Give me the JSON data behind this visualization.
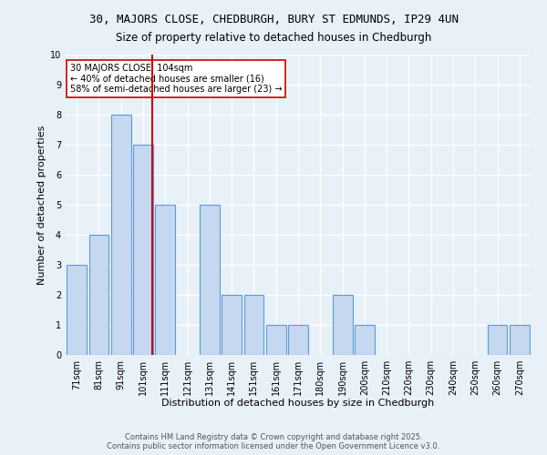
{
  "title": "30, MAJORS CLOSE, CHEDBURGH, BURY ST EDMUNDS, IP29 4UN",
  "subtitle": "Size of property relative to detached houses in Chedburgh",
  "xlabel": "Distribution of detached houses by size in Chedburgh",
  "ylabel": "Number of detached properties",
  "categories": [
    "71sqm",
    "81sqm",
    "91sqm",
    "101sqm",
    "111sqm",
    "121sqm",
    "131sqm",
    "141sqm",
    "151sqm",
    "161sqm",
    "171sqm",
    "180sqm",
    "190sqm",
    "200sqm",
    "210sqm",
    "220sqm",
    "230sqm",
    "240sqm",
    "250sqm",
    "260sqm",
    "270sqm"
  ],
  "values": [
    3,
    4,
    8,
    7,
    5,
    0,
    5,
    2,
    2,
    1,
    1,
    0,
    2,
    1,
    0,
    0,
    0,
    0,
    0,
    1,
    1
  ],
  "bar_color": "#c5d8f0",
  "bar_edge_color": "#5b9bd5",
  "background_color": "#e8f0f8",
  "grid_color": "#ffffff",
  "red_line_x": 3.4,
  "annotation_text": "30 MAJORS CLOSE: 104sqm\n← 40% of detached houses are smaller (16)\n58% of semi-detached houses are larger (23) →",
  "annotation_box_color": "#ffffff",
  "annotation_box_edge": "#cc0000",
  "red_line_color": "#cc0000",
  "ylim": [
    0,
    10
  ],
  "yticks": [
    0,
    1,
    2,
    3,
    4,
    5,
    6,
    7,
    8,
    9,
    10
  ],
  "footer": "Contains HM Land Registry data © Crown copyright and database right 2025.\nContains public sector information licensed under the Open Government Licence v3.0.",
  "title_fontsize": 9,
  "subtitle_fontsize": 8.5,
  "xlabel_fontsize": 8,
  "ylabel_fontsize": 8,
  "tick_fontsize": 7,
  "annotation_fontsize": 7,
  "footer_fontsize": 6
}
